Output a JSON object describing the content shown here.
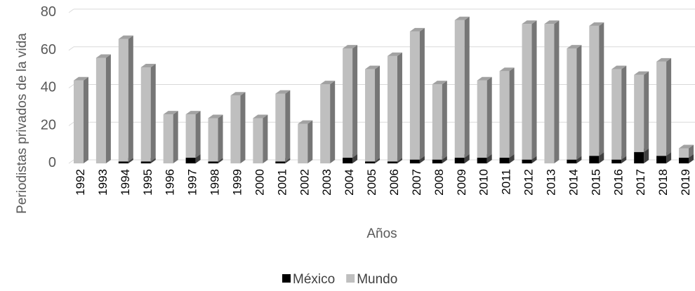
{
  "chart_data": {
    "type": "bar",
    "stacked": true,
    "three_d": true,
    "title": "",
    "xlabel": "Años",
    "ylabel": "Periodistas privados de la vida",
    "ylim": [
      0,
      80
    ],
    "yticks": [
      0,
      20,
      40,
      60,
      80
    ],
    "grid": true,
    "legend_position": "bottom",
    "categories": [
      "1992",
      "1993",
      "1994",
      "1995",
      "1996",
      "1997",
      "1998",
      "1999",
      "2000",
      "2001",
      "2002",
      "2003",
      "2004",
      "2005",
      "2006",
      "2007",
      "2008",
      "2009",
      "2010",
      "2011",
      "2012",
      "2013",
      "2014",
      "2015",
      "2016",
      "2017",
      "2018",
      "2019"
    ],
    "series": [
      {
        "name": "México",
        "color": "#000000",
        "values": [
          0,
          0,
          1,
          1,
          0,
          3,
          1,
          0,
          0,
          1,
          0,
          0,
          3,
          1,
          1,
          2,
          2,
          3,
          3,
          3,
          2,
          0,
          2,
          4,
          2,
          6,
          4,
          3
        ]
      },
      {
        "name": "Mundo",
        "color": "#bfbfbf",
        "values": [
          44,
          56,
          65,
          50,
          26,
          23,
          23,
          36,
          24,
          36,
          21,
          42,
          58,
          49,
          56,
          68,
          40,
          73,
          41,
          46,
          72,
          74,
          59,
          69,
          48,
          41,
          50,
          5
        ]
      }
    ]
  }
}
